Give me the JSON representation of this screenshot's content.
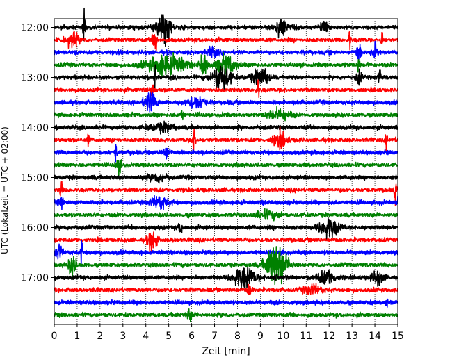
{
  "chart_data": {
    "type": "line",
    "subtype": "helicorder seismogram",
    "xlabel": "Zeit  [min]",
    "ylabel": "UTC (Lokalzeit = UTC + 02:00)",
    "xlim": [
      0,
      15
    ],
    "x_ticks": [
      "0",
      "1",
      "2",
      "3",
      "4",
      "5",
      "6",
      "7",
      "8",
      "9",
      "10",
      "11",
      "12",
      "13",
      "14",
      "15"
    ],
    "grid": "vertical dotted at each minute",
    "trace_start_utc": [
      "12:00",
      "12:15",
      "12:30",
      "12:45",
      "13:00",
      "13:15",
      "13:30",
      "13:45",
      "14:00",
      "14:15",
      "14:30",
      "14:45",
      "15:00",
      "15:15",
      "15:30",
      "15:45",
      "16:00",
      "16:15",
      "16:30",
      "16:45",
      "17:00",
      "17:15",
      "17:30",
      "17:45"
    ],
    "y_tick_labels": [
      "12:00",
      "13:00",
      "14:00",
      "15:00",
      "16:00",
      "17:00"
    ],
    "y_tick_rows": [
      0,
      4,
      8,
      12,
      16,
      20
    ],
    "trace_color_cycle": [
      "#000000",
      "#ff0000",
      "#0000ff",
      "#008000"
    ],
    "traces": [
      {
        "events": [
          {
            "t": 1.3,
            "amp": 2.5,
            "dur": 0.1
          },
          {
            "t": 4.8,
            "amp": 2.2,
            "dur": 0.6
          },
          {
            "t": 9.9,
            "amp": 1.2,
            "dur": 0.5
          },
          {
            "t": 11.8,
            "amp": 0.8,
            "dur": 0.4
          }
        ]
      },
      {
        "events": [
          {
            "t": 0.8,
            "amp": 0.9,
            "dur": 0.5
          },
          {
            "t": 4.4,
            "amp": 1.6,
            "dur": 0.2
          },
          {
            "t": 12.9,
            "amp": 1.5,
            "dur": 0.1
          },
          {
            "t": 14.3,
            "amp": 1.4,
            "dur": 0.1
          }
        ]
      },
      {
        "events": [
          {
            "t": 6.9,
            "amp": 0.6,
            "dur": 0.5
          },
          {
            "t": 13.3,
            "amp": 1.5,
            "dur": 0.2
          },
          {
            "t": 14.0,
            "amp": 0.8,
            "dur": 0.3
          }
        ]
      },
      {
        "events": [
          {
            "t": 4.9,
            "amp": 1.3,
            "dur": 1.6
          },
          {
            "t": 6.5,
            "amp": 1.4,
            "dur": 0.3
          },
          {
            "t": 7.5,
            "amp": 1.1,
            "dur": 0.9
          },
          {
            "t": 13.3,
            "amp": 1.4,
            "dur": 0.1
          }
        ]
      },
      {
        "events": [
          {
            "t": 4.4,
            "amp": 1.6,
            "dur": 0.1
          },
          {
            "t": 7.3,
            "amp": 1.6,
            "dur": 0.8
          },
          {
            "t": 9.0,
            "amp": 1.2,
            "dur": 0.7
          },
          {
            "t": 13.3,
            "amp": 1.0,
            "dur": 0.2
          },
          {
            "t": 14.2,
            "amp": 1.5,
            "dur": 0.1
          }
        ]
      },
      {
        "events": [
          {
            "t": 4.3,
            "amp": 0.8,
            "dur": 0.2
          },
          {
            "t": 8.9,
            "amp": 1.6,
            "dur": 0.1
          }
        ]
      },
      {
        "events": [
          {
            "t": 4.2,
            "amp": 1.4,
            "dur": 0.5
          },
          {
            "t": 6.2,
            "amp": 0.9,
            "dur": 0.7
          }
        ]
      },
      {
        "events": [
          {
            "t": 5.6,
            "amp": 1.0,
            "dur": 0.1
          },
          {
            "t": 9.8,
            "amp": 0.7,
            "dur": 0.9
          }
        ]
      },
      {
        "events": [
          {
            "t": 4.7,
            "amp": 0.5,
            "dur": 1.0
          }
        ]
      },
      {
        "events": [
          {
            "t": 1.5,
            "amp": 0.8,
            "dur": 0.1
          },
          {
            "t": 6.1,
            "amp": 1.3,
            "dur": 0.2
          },
          {
            "t": 9.9,
            "amp": 0.9,
            "dur": 0.6
          },
          {
            "t": 14.5,
            "amp": 0.9,
            "dur": 0.1
          }
        ]
      },
      {
        "events": [
          {
            "t": 2.7,
            "amp": 1.3,
            "dur": 0.1
          },
          {
            "t": 4.9,
            "amp": 0.8,
            "dur": 0.3
          }
        ]
      },
      {
        "events": [
          {
            "t": 2.8,
            "amp": 0.8,
            "dur": 0.3
          }
        ]
      },
      {
        "events": [
          {
            "t": 4.5,
            "amp": 0.5,
            "dur": 0.8
          }
        ]
      },
      {
        "events": [
          {
            "t": 0.3,
            "amp": 1.8,
            "dur": 0.1
          },
          {
            "t": 14.9,
            "amp": 1.6,
            "dur": 0.1
          }
        ]
      },
      {
        "events": [
          {
            "t": 0.3,
            "amp": 1.0,
            "dur": 0.2
          },
          {
            "t": 4.6,
            "amp": 0.9,
            "dur": 0.7
          },
          {
            "t": 15.0,
            "amp": 1.2,
            "dur": 0.05
          }
        ]
      },
      {
        "events": [
          {
            "t": 9.3,
            "amp": 0.5,
            "dur": 1.0
          }
        ]
      },
      {
        "events": [
          {
            "t": 5.5,
            "amp": 0.6,
            "dur": 0.2
          },
          {
            "t": 12.0,
            "amp": 1.3,
            "dur": 0.8
          }
        ]
      },
      {
        "events": [
          {
            "t": 4.3,
            "amp": 1.3,
            "dur": 0.4
          }
        ]
      },
      {
        "events": [
          {
            "t": 1.2,
            "amp": 2.0,
            "dur": 0.1
          },
          {
            "t": 0.2,
            "amp": 1.0,
            "dur": 0.3
          }
        ]
      },
      {
        "events": [
          {
            "t": 0.8,
            "amp": 1.6,
            "dur": 0.3
          },
          {
            "t": 9.7,
            "amp": 2.8,
            "dur": 0.9
          }
        ]
      },
      {
        "events": [
          {
            "t": 8.3,
            "amp": 1.5,
            "dur": 0.9
          },
          {
            "t": 11.9,
            "amp": 1.0,
            "dur": 0.7
          },
          {
            "t": 9.7,
            "amp": 1.2,
            "dur": 0.1
          },
          {
            "t": 14.1,
            "amp": 0.8,
            "dur": 0.5
          }
        ]
      },
      {
        "events": [
          {
            "t": 8.5,
            "amp": 0.8,
            "dur": 0.2
          },
          {
            "t": 11.3,
            "amp": 0.6,
            "dur": 0.8
          }
        ]
      },
      {
        "events": [
          {
            "t": 14.5,
            "amp": 0.8,
            "dur": 0.1
          }
        ]
      },
      {
        "events": [
          {
            "t": 5.9,
            "amp": 0.7,
            "dur": 0.3
          }
        ]
      }
    ]
  }
}
